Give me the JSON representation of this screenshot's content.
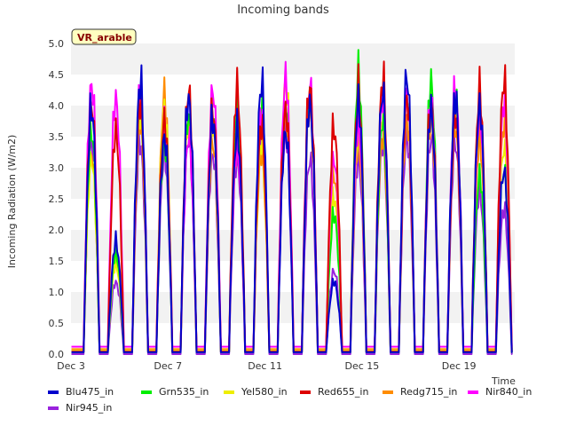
{
  "chart_data": {
    "type": "line",
    "title": "Incoming bands",
    "ylabel": "Incoming Radiation (W/m2)",
    "xlabel": "Time",
    "badge": "VR_arable",
    "ylim": [
      0,
      5.0
    ],
    "yticks": [
      "0.0",
      "0.5",
      "1.0",
      "1.5",
      "2.0",
      "2.5",
      "3.0",
      "3.5",
      "4.0",
      "4.5",
      "5.0"
    ],
    "xlim_days": [
      3,
      21.3
    ],
    "xtick_days": [
      3,
      7,
      11,
      15,
      19
    ],
    "xticks": [
      "Dec 3",
      "Dec 7",
      "Dec 11",
      "Dec 15",
      "Dec 19"
    ],
    "grid": "horizontal bands",
    "legend_position": "bottom",
    "days": [
      3.85,
      4.85,
      5.85,
      6.85,
      7.85,
      8.85,
      9.85,
      10.85,
      11.85,
      12.85,
      13.85,
      14.85,
      15.85,
      16.85,
      17.85,
      18.85,
      19.85,
      20.85
    ],
    "series": [
      {
        "name": "Blu475_in",
        "color": "#0000cc",
        "night": 0.03,
        "peaks": [
          4.4,
          2.0,
          4.85,
          3.9,
          4.6,
          4.2,
          4.0,
          4.85,
          4.0,
          4.5,
          1.3,
          4.5,
          4.7,
          5.0,
          4.4,
          4.6,
          4.45,
          3.3
        ]
      },
      {
        "name": "Grn535_in",
        "color": "#00ee00",
        "night": 0.03,
        "peaks": [
          4.0,
          1.8,
          4.5,
          3.8,
          4.3,
          4.35,
          4.35,
          4.5,
          4.5,
          4.7,
          2.5,
          5.0,
          4.2,
          4.7,
          4.9,
          4.7,
          3.2,
          3.3
        ]
      },
      {
        "name": "Yel580_in",
        "color": "#eeee00",
        "night": 0.05,
        "peaks": [
          3.5,
          1.6,
          4.3,
          4.4,
          4.2,
          4.1,
          3.9,
          3.8,
          4.9,
          4.6,
          2.8,
          4.0,
          4.3,
          4.7,
          4.6,
          4.4,
          4.6,
          3.7
        ]
      },
      {
        "name": "Red655_in",
        "color": "#dd0000",
        "night": 0.04,
        "peaks": [
          4.5,
          4.0,
          4.5,
          4.2,
          4.75,
          4.4,
          4.75,
          4.1,
          4.4,
          4.8,
          4.05,
          4.7,
          4.9,
          4.6,
          4.5,
          4.3,
          4.7,
          4.9
        ]
      },
      {
        "name": "Redg715_in",
        "color": "#ff8c00",
        "night": 0.08,
        "peaks": [
          3.6,
          1.9,
          4.2,
          4.65,
          4.15,
          3.8,
          3.7,
          3.6,
          4.3,
          4.4,
          3.2,
          3.8,
          3.9,
          4.2,
          4.2,
          4.1,
          3.8,
          4.1
        ]
      },
      {
        "name": "Nir840_in",
        "color": "#ff00ff",
        "night": 0.12,
        "peaks": [
          4.85,
          4.6,
          4.6,
          4.1,
          3.9,
          4.75,
          3.7,
          4.3,
          4.95,
          4.85,
          3.5,
          4.1,
          4.6,
          4.6,
          4.6,
          4.7,
          4.3,
          4.5
        ]
      },
      {
        "name": "Nir945_in",
        "color": "#9922dd",
        "night": 0.0,
        "peaks": [
          3.8,
          1.3,
          3.8,
          3.6,
          3.9,
          3.6,
          3.5,
          3.9,
          4.0,
          3.5,
          1.5,
          3.5,
          3.8,
          3.9,
          3.9,
          3.8,
          2.9,
          2.6
        ]
      }
    ]
  }
}
